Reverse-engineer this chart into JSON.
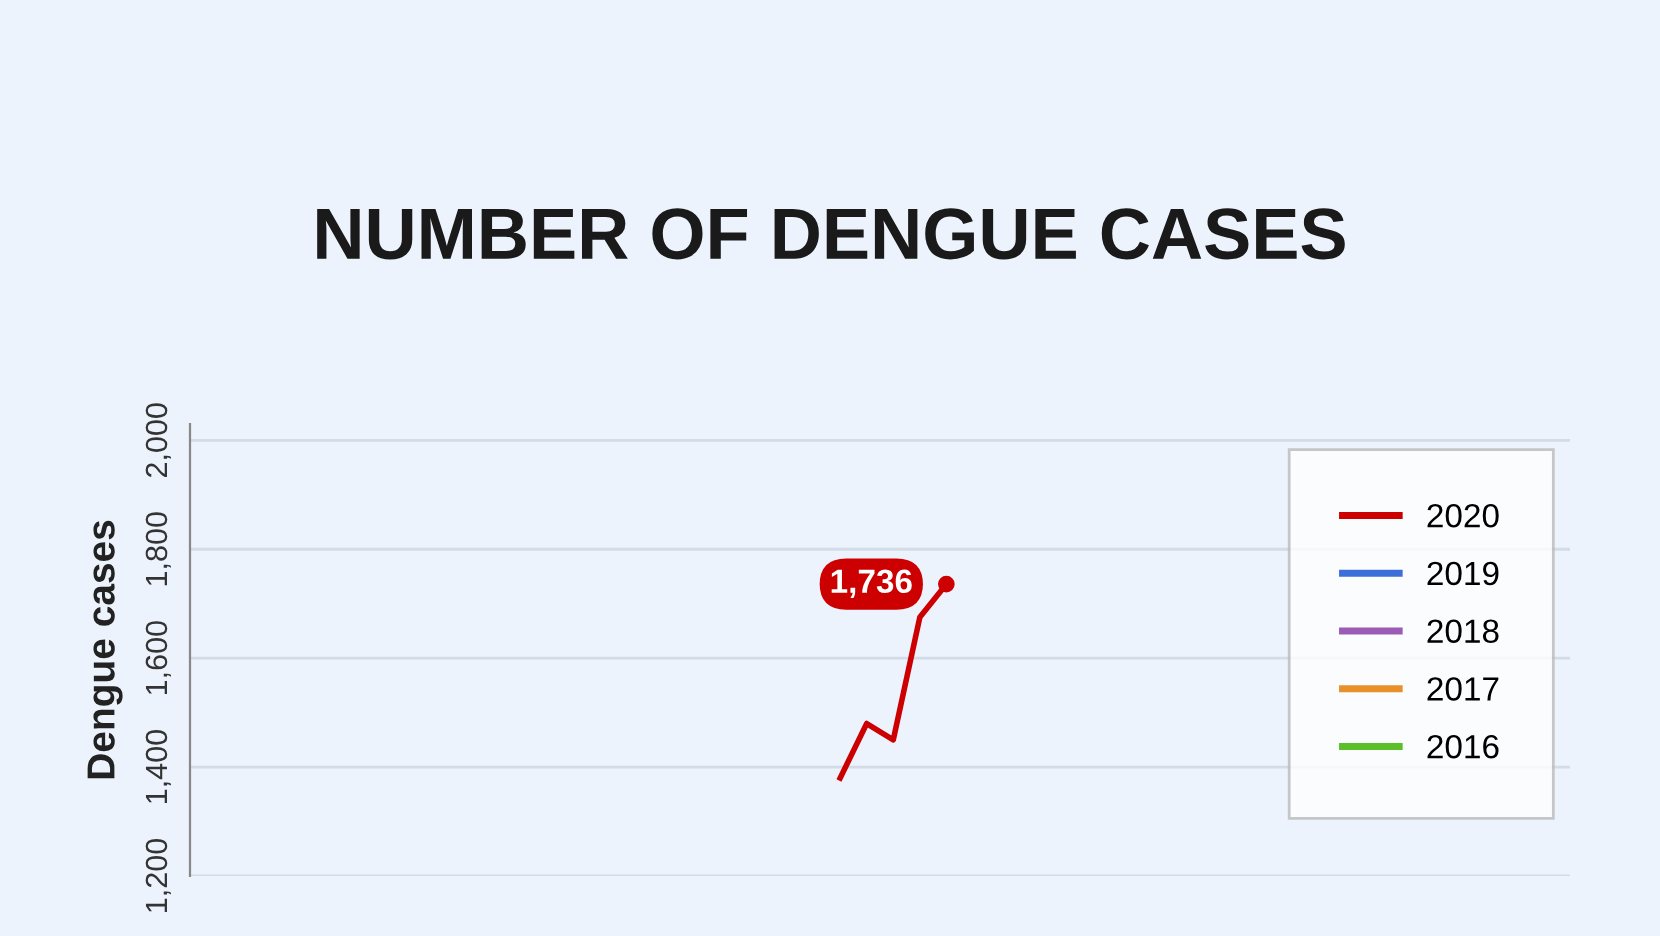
{
  "chart_data": {
    "type": "line",
    "title": "NUMBER OF DENGUE CASES",
    "ylabel": "Dengue cases",
    "categories": [
      null,
      null,
      null,
      null,
      null,
      null,
      null,
      null,
      null,
      null,
      null,
      null,
      null,
      null,
      null,
      null,
      null,
      null,
      null,
      null,
      null,
      null,
      null,
      null,
      null,
      null,
      null,
      null,
      null,
      null,
      null,
      null,
      null,
      null,
      null,
      null,
      null,
      null,
      null,
      null,
      null,
      null,
      null,
      null,
      null,
      null,
      null,
      null,
      null,
      null,
      null,
      null
    ],
    "series": [
      {
        "name": "2020",
        "color": "#cc0000",
        "values": [
          null,
          null,
          null,
          null,
          null,
          null,
          null,
          null,
          null,
          null,
          null,
          null,
          null,
          null,
          null,
          null,
          null,
          null,
          null,
          null,
          null,
          null,
          null,
          null,
          1380,
          1480,
          1450,
          1675,
          1736,
          null,
          null,
          null,
          null,
          null,
          null,
          null,
          null,
          null,
          null,
          null,
          null,
          null,
          null,
          null,
          null,
          null,
          null,
          null,
          null,
          null,
          null,
          null
        ],
        "value_labels": [
          null,
          null,
          null,
          null,
          null,
          null,
          null,
          null,
          null,
          null,
          null,
          null,
          null,
          null,
          null,
          null,
          null,
          null,
          null,
          null,
          null,
          null,
          null,
          null,
          null,
          null,
          null,
          null,
          "1,736",
          null,
          null,
          null,
          null,
          null,
          null,
          null,
          null,
          null,
          null,
          null,
          null,
          null,
          null,
          null,
          null,
          null,
          null,
          null,
          null,
          null,
          null,
          null
        ]
      },
      {
        "name": "2019",
        "color": "#3c6fd8",
        "values": [
          null,
          null,
          null,
          null,
          null,
          null,
          null,
          null,
          null,
          null,
          null,
          null,
          null,
          null,
          null,
          null,
          null,
          null,
          null,
          null,
          null,
          null,
          null,
          null,
          null,
          null,
          null,
          null,
          null,
          null,
          null,
          null,
          null,
          null,
          null,
          null,
          null,
          null,
          null,
          null,
          null,
          null,
          null,
          null,
          null,
          null,
          null,
          null,
          null,
          null,
          null,
          null
        ]
      },
      {
        "name": "2018",
        "color": "#9a5cb4",
        "values": [
          null,
          null,
          null,
          null,
          null,
          null,
          null,
          null,
          null,
          null,
          null,
          null,
          null,
          null,
          null,
          null,
          null,
          null,
          null,
          null,
          null,
          null,
          null,
          null,
          null,
          null,
          null,
          null,
          null,
          null,
          null,
          null,
          null,
          null,
          null,
          null,
          null,
          null,
          null,
          null,
          null,
          null,
          null,
          null,
          null,
          null,
          null,
          null,
          null,
          null,
          null,
          null
        ]
      },
      {
        "name": "2017",
        "color": "#e8902a",
        "values": [
          null,
          null,
          null,
          null,
          null,
          null,
          null,
          null,
          null,
          null,
          null,
          null,
          null,
          null,
          null,
          null,
          null,
          null,
          null,
          null,
          null,
          null,
          null,
          null,
          null,
          null,
          null,
          null,
          null,
          null,
          null,
          null,
          null,
          null,
          null,
          null,
          null,
          null,
          null,
          null,
          null,
          null,
          null,
          null,
          null,
          null,
          null,
          null,
          null,
          null,
          null,
          null
        ]
      },
      {
        "name": "2016",
        "color": "#5bbf2a",
        "values": [
          null,
          null,
          null,
          null,
          null,
          null,
          null,
          null,
          null,
          null,
          null,
          null,
          null,
          null,
          null,
          null,
          null,
          null,
          null,
          null,
          null,
          null,
          null,
          null,
          null,
          null,
          null,
          null,
          null,
          null,
          null,
          null,
          null,
          null,
          null,
          null,
          null,
          null,
          null,
          null,
          null,
          null,
          null,
          null,
          null,
          null,
          null,
          null,
          null,
          null,
          null,
          null
        ]
      }
    ],
    "ylim": [
      1200,
      2030
    ],
    "yticks": [
      {
        "value": 1200,
        "label": "1,200"
      },
      {
        "value": 1400,
        "label": "1,400"
      },
      {
        "value": 1600,
        "label": "1,600"
      },
      {
        "value": 1800,
        "label": "1,800"
      },
      {
        "value": 2000,
        "label": "2,000"
      }
    ],
    "grid": "y",
    "legend": "top right",
    "tick_labels": "y",
    "marker": "none",
    "line_style": "solid"
  }
}
